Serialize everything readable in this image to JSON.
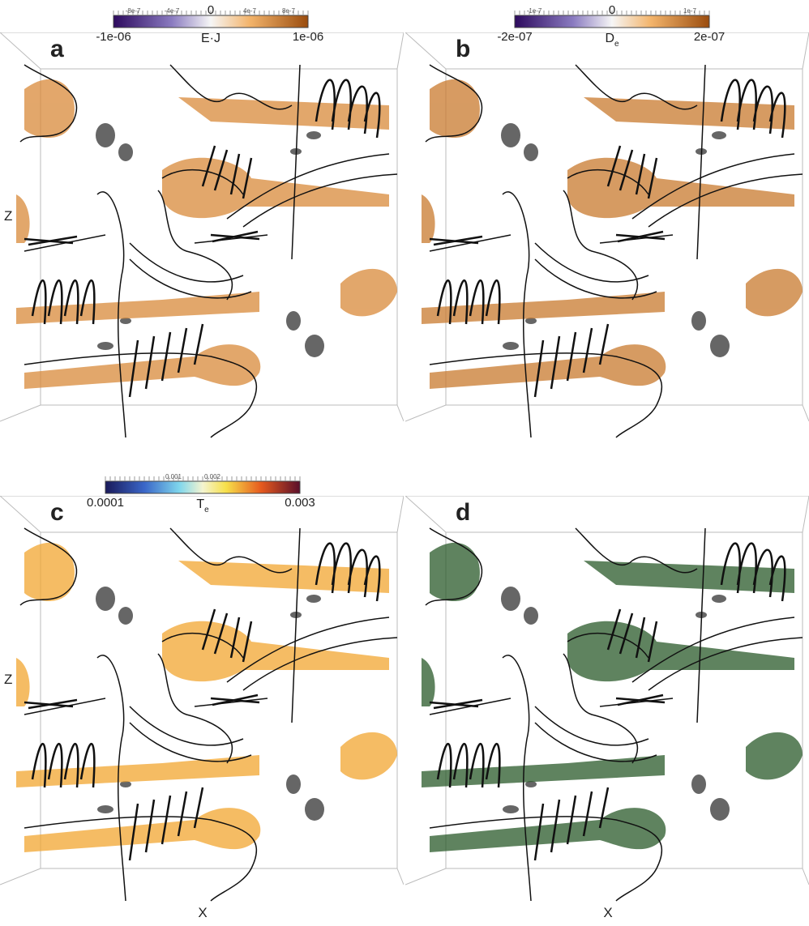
{
  "panels": [
    {
      "letter": "a",
      "colorbar": {
        "min": "-1e-06",
        "max": "1e-06",
        "label": "E·J",
        "zero": "0",
        "ticks": [
          "-8e-7",
          "-4e-7",
          "4e-7",
          "8e-7"
        ]
      },
      "z_axis": "Z"
    },
    {
      "letter": "b",
      "colorbar": {
        "min": "-2e-07",
        "max": "2e-07",
        "label": "D",
        "label_sub": "e",
        "zero": "0",
        "ticks": [
          "-1e-7",
          "1e-7"
        ]
      }
    },
    {
      "letter": "c",
      "colorbar": {
        "min": "0.0001",
        "max": "0.003",
        "label": "T",
        "label_sub": "e",
        "ticks": [
          "0.001",
          "0.002"
        ]
      },
      "z_axis": "Z",
      "x_axis": "X"
    },
    {
      "letter": "d",
      "x_axis": "X"
    }
  ]
}
